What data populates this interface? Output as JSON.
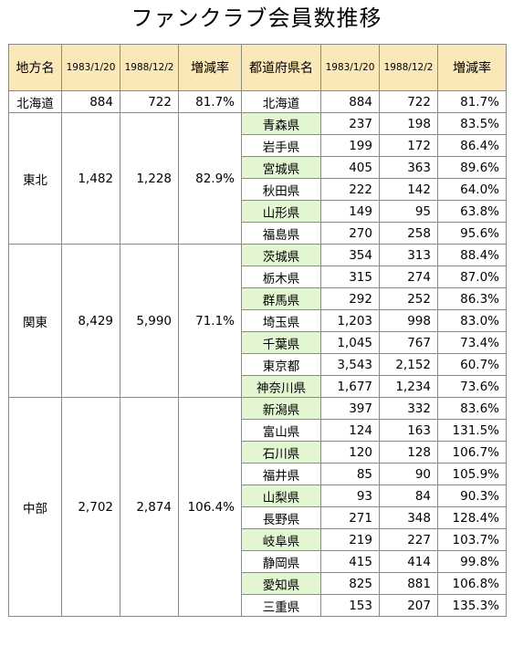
{
  "title": "ファンクラブ会員数推移",
  "headers": {
    "region": "地方名",
    "d1": "1983/1/20",
    "d2": "1988/12/2",
    "rate": "増減率",
    "pref": "都道府県名",
    "pd1": "1983/1/20",
    "pd2": "1988/12/2",
    "prate": "増減率"
  },
  "regions": [
    {
      "name": "北海道",
      "v1": "884",
      "v2": "722",
      "rate": "81.7%",
      "prefs": [
        {
          "name": "北海道",
          "v1": "884",
          "v2": "722",
          "rate": "81.7%"
        }
      ]
    },
    {
      "name": "東北",
      "v1": "1,482",
      "v2": "1,228",
      "rate": "82.9%",
      "prefs": [
        {
          "name": "青森県",
          "v1": "237",
          "v2": "198",
          "rate": "83.5%"
        },
        {
          "name": "岩手県",
          "v1": "199",
          "v2": "172",
          "rate": "86.4%"
        },
        {
          "name": "宮城県",
          "v1": "405",
          "v2": "363",
          "rate": "89.6%"
        },
        {
          "name": "秋田県",
          "v1": "222",
          "v2": "142",
          "rate": "64.0%"
        },
        {
          "name": "山形県",
          "v1": "149",
          "v2": "95",
          "rate": "63.8%"
        },
        {
          "name": "福島県",
          "v1": "270",
          "v2": "258",
          "rate": "95.6%"
        }
      ]
    },
    {
      "name": "関東",
      "v1": "8,429",
      "v2": "5,990",
      "rate": "71.1%",
      "prefs": [
        {
          "name": "茨城県",
          "v1": "354",
          "v2": "313",
          "rate": "88.4%"
        },
        {
          "name": "栃木県",
          "v1": "315",
          "v2": "274",
          "rate": "87.0%"
        },
        {
          "name": "群馬県",
          "v1": "292",
          "v2": "252",
          "rate": "86.3%"
        },
        {
          "name": "埼玉県",
          "v1": "1,203",
          "v2": "998",
          "rate": "83.0%"
        },
        {
          "name": "千葉県",
          "v1": "1,045",
          "v2": "767",
          "rate": "73.4%"
        },
        {
          "name": "東京都",
          "v1": "3,543",
          "v2": "2,152",
          "rate": "60.7%"
        },
        {
          "name": "神奈川県",
          "v1": "1,677",
          "v2": "1,234",
          "rate": "73.6%"
        }
      ]
    },
    {
      "name": "中部",
      "v1": "2,702",
      "v2": "2,874",
      "rate": "106.4%",
      "prefs": [
        {
          "name": "新潟県",
          "v1": "397",
          "v2": "332",
          "rate": "83.6%"
        },
        {
          "name": "富山県",
          "v1": "124",
          "v2": "163",
          "rate": "131.5%"
        },
        {
          "name": "石川県",
          "v1": "120",
          "v2": "128",
          "rate": "106.7%"
        },
        {
          "name": "福井県",
          "v1": "85",
          "v2": "90",
          "rate": "105.9%"
        },
        {
          "name": "山梨県",
          "v1": "93",
          "v2": "84",
          "rate": "90.3%"
        },
        {
          "name": "長野県",
          "v1": "271",
          "v2": "348",
          "rate": "128.4%"
        },
        {
          "name": "岐阜県",
          "v1": "219",
          "v2": "227",
          "rate": "103.7%"
        },
        {
          "name": "静岡県",
          "v1": "415",
          "v2": "414",
          "rate": "99.8%"
        },
        {
          "name": "愛知県",
          "v1": "825",
          "v2": "881",
          "rate": "106.8%"
        },
        {
          "name": "三重県",
          "v1": "153",
          "v2": "207",
          "rate": "135.3%"
        }
      ]
    }
  ],
  "colors": {
    "header_bg": "#fbe8b8",
    "pref_highlight_bg": "#e3f6d2",
    "border": "#8a8a8a"
  }
}
